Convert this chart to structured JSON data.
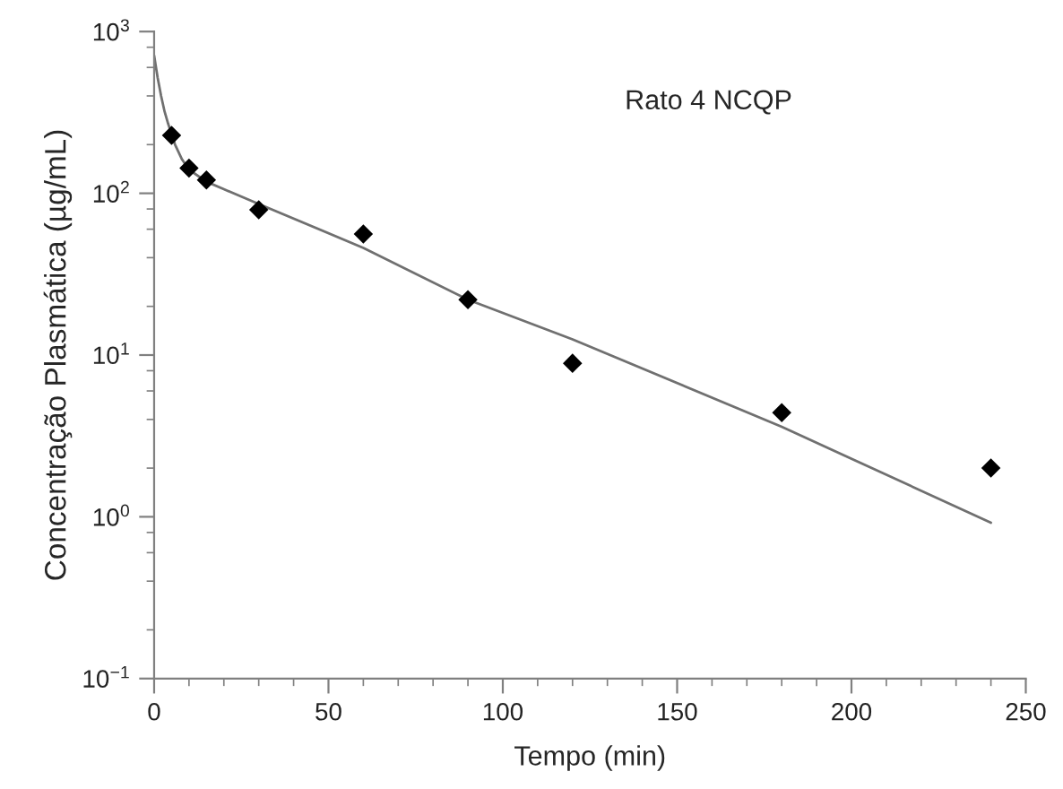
{
  "chart_data": {
    "type": "scatter",
    "xlabel": "Tempo (min)",
    "ylabel": "Concentração Plasmática (µg/mL)",
    "annotations": [
      "Rato 4 NCQP"
    ],
    "log": "y",
    "marker": "diamond",
    "grid": false,
    "legend": false,
    "xlim": [
      0,
      250
    ],
    "xticks": [
      0,
      50,
      100,
      150,
      200,
      250
    ],
    "ylim": [
      0.1,
      1000
    ],
    "yticks": [
      {
        "value": 0.1,
        "label": "10$^{−1}$"
      },
      {
        "value": 1,
        "label": "10$^{0}$"
      },
      {
        "value": 10,
        "label": "10$^{1}$"
      },
      {
        "value": 100,
        "label": "10$^{2}$"
      },
      {
        "value": 1000,
        "label": "10$^{3}$"
      }
    ],
    "series": [
      {
        "color": "#000000",
        "x": [
          5,
          10,
          15,
          30,
          60,
          90,
          120,
          180,
          240
        ],
        "values": [
          228,
          143,
          121,
          79,
          56,
          22,
          8.9,
          4.4,
          2.0
        ]
      },
      {
        "type": "line",
        "color": "#707070",
        "marker": "none",
        "x": [
          0,
          1,
          2,
          3,
          4,
          6,
          8,
          10,
          15,
          20,
          30,
          60,
          90,
          120,
          180,
          240
        ],
        "values": [
          710,
          520,
          400,
          320,
          270,
          200,
          162,
          140,
          118,
          106,
          86,
          46,
          22,
          12.5,
          3.6,
          0.92
        ]
      }
    ]
  }
}
